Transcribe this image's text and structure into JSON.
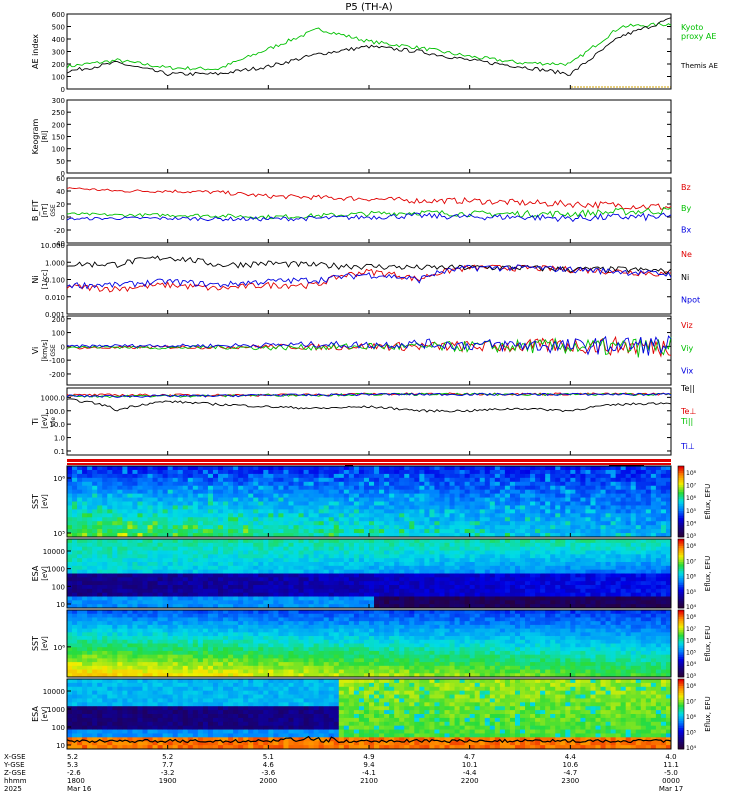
{
  "title": "P5 (TH-A)",
  "colors": {
    "black": "#000000",
    "red": "#e00000",
    "green": "#00c000",
    "blue": "#0000e0",
    "gold": "#d0a000"
  },
  "chart_data": [
    {
      "type": "line",
      "panel": "ae",
      "ylabel": "AE index",
      "yticks": [
        "0",
        "100",
        "200",
        "300",
        "400",
        "500",
        "600"
      ],
      "ylim": [
        0,
        600
      ],
      "legend": [
        {
          "text": "Kyoto",
          "color": "#00c000"
        },
        {
          "text": "proxy AE",
          "color": "#00c000"
        },
        {
          "text": "Themis AE",
          "color": "#000000"
        }
      ],
      "x": [
        "1800",
        "1830",
        "1900",
        "1930",
        "2000",
        "2030",
        "2100",
        "2130",
        "2200",
        "2230",
        "2300",
        "2330",
        "0000"
      ],
      "series": [
        {
          "name": "Kyoto proxy AE",
          "color": "#00c000",
          "values": [
            180,
            230,
            170,
            160,
            320,
            480,
            380,
            330,
            260,
            210,
            200,
            500,
            520
          ]
        },
        {
          "name": "Themis AE",
          "color": "#000000",
          "values": [
            140,
            210,
            120,
            120,
            180,
            280,
            340,
            300,
            230,
            180,
            120,
            420,
            560
          ]
        }
      ]
    },
    {
      "type": "heatmap",
      "panel": "keogram",
      "ylabel": "Keogram",
      "yunit": "[Rl]",
      "yticks": [
        "0",
        "50",
        "100",
        "150",
        "200",
        "250",
        "300"
      ]
    },
    {
      "type": "line",
      "panel": "bfield",
      "ylabel": "B_FIT",
      "yunit": "[nT]",
      "coord": "GSE",
      "yticks": [
        "-40",
        "-20",
        "0",
        "20",
        "40",
        "60"
      ],
      "ylim": [
        -40,
        60
      ],
      "series": [
        {
          "name": "Bz",
          "color": "#e00000",
          "values": [
            45,
            40,
            40,
            38,
            32,
            30,
            28,
            25,
            25,
            22,
            20,
            18,
            15
          ]
        },
        {
          "name": "By",
          "color": "#00c000",
          "values": [
            5,
            3,
            3,
            2,
            0,
            2,
            5,
            7,
            5,
            5,
            5,
            8,
            10
          ]
        },
        {
          "name": "Bx",
          "color": "#0000e0",
          "values": [
            -3,
            -2,
            -2,
            -3,
            -3,
            -2,
            0,
            2,
            0,
            0,
            -2,
            0,
            0
          ]
        }
      ]
    },
    {
      "type": "line",
      "panel": "density",
      "ylog": true,
      "ylabel": "Ni",
      "yunit": "[1/cc]",
      "yticks": [
        "0.001",
        "0.010",
        "0.100",
        "1.000",
        "10.000"
      ],
      "series": [
        {
          "name": "Ne",
          "color": "#e00000",
          "values": [
            0.04,
            0.03,
            0.05,
            0.03,
            0.05,
            0.05,
            0.3,
            0.1,
            0.5,
            0.5,
            0.4,
            0.3,
            0.2
          ]
        },
        {
          "name": "Ni",
          "color": "#000000",
          "values": [
            0.8,
            0.8,
            2,
            0.7,
            0.9,
            0.7,
            0.6,
            0.5,
            0.5,
            0.5,
            0.4,
            0.4,
            0.3
          ]
        },
        {
          "name": "Npot",
          "color": "#0000e0",
          "values": [
            0.05,
            0.05,
            0.08,
            0.05,
            0.08,
            0.1,
            0.2,
            0.1,
            0.5,
            0.5,
            0.4,
            0.3,
            0.2
          ]
        }
      ]
    },
    {
      "type": "line",
      "panel": "velocity",
      "ylabel": "Vi",
      "yunit": "[km/s]",
      "coord": "GSE",
      "yticks": [
        "-200",
        "-100",
        "0",
        "100",
        "200"
      ],
      "ylim": [
        -280,
        220
      ],
      "series": [
        {
          "name": "Viz",
          "color": "#e00000",
          "values": [
            -10,
            -10,
            -5,
            -5,
            0,
            -5,
            0,
            0,
            0,
            0,
            10,
            0,
            0
          ]
        },
        {
          "name": "Viy",
          "color": "#00c000",
          "values": [
            -5,
            -5,
            -10,
            -5,
            -10,
            -5,
            0,
            -5,
            0,
            0,
            0,
            -10,
            -5
          ]
        },
        {
          "name": "Vix",
          "color": "#0000e0",
          "values": [
            0,
            5,
            5,
            5,
            10,
            15,
            10,
            20,
            10,
            10,
            0,
            10,
            5
          ]
        }
      ]
    },
    {
      "type": "line",
      "panel": "temperature",
      "ylog": true,
      "ylabel": "Ti",
      "yunit": "[eV]",
      "coord": "ele",
      "yticks": [
        "0.1",
        "1.0",
        "10.0",
        "100.0",
        "1000.0"
      ],
      "series": [
        {
          "name": "Te||",
          "color": "#000000",
          "values": [
            700,
            100,
            500,
            300,
            200,
            150,
            200,
            100,
            100,
            150,
            100,
            300,
            400
          ]
        },
        {
          "name": "Te⊥",
          "color": "#e00000",
          "values": [
            1500,
            1500,
            1500,
            1500,
            1500,
            1600,
            1800,
            1800,
            1800,
            1800,
            1800,
            1800,
            1800
          ]
        },
        {
          "name": "Ti||",
          "color": "#00c000",
          "values": [
            1300,
            1200,
            1300,
            1300,
            1500,
            1500,
            1700,
            1700,
            1700,
            1700,
            1700,
            1700,
            1700
          ]
        },
        {
          "name": "Ti⊥",
          "color": "#0000e0",
          "values": [
            1300,
            1200,
            1300,
            1300,
            1500,
            1500,
            1700,
            1700,
            1700,
            1700,
            1700,
            1700,
            1700
          ]
        }
      ]
    },
    {
      "type": "heatmap",
      "panel": "sst-ele",
      "ylabel": "SST",
      "yunit": "[eV]",
      "species": "ele",
      "yticks": [
        "10⁶",
        "10⁵"
      ],
      "colorbar": {
        "label": "Eflux, EFU",
        "ticks": [
          "10⁸",
          "10⁷",
          "10⁶",
          "10⁵",
          "10⁴",
          "10³"
        ]
      }
    },
    {
      "type": "heatmap",
      "panel": "esa-ele",
      "ylabel": "ESA",
      "yunit": "[eV]",
      "species": "ele",
      "yticks": [
        "10000",
        "1000",
        "100",
        "10"
      ],
      "colorbar": {
        "label": "Eflux, EFU",
        "ticks": [
          "10⁸",
          "10⁷",
          "10⁶",
          "10⁵",
          "10⁴"
        ]
      }
    },
    {
      "type": "heatmap",
      "panel": "sst-ion",
      "ylabel": "SST",
      "yunit": "[eV]",
      "species": "ion",
      "yticks": [
        "10⁶"
      ],
      "colorbar": {
        "label": "Eflux, EFU",
        "ticks": [
          "10⁸",
          "10⁷",
          "10⁶",
          "10⁵",
          "10⁴",
          "10³"
        ]
      }
    },
    {
      "type": "heatmap",
      "panel": "esa-ion",
      "ylabel": "ESA",
      "yunit": "[eV]",
      "species": "ion",
      "yticks": [
        "10000",
        "1000",
        "100",
        "10"
      ],
      "colorbar": {
        "label": "Eflux, EFU",
        "ticks": [
          "10⁸",
          "10⁷",
          "10⁶",
          "10⁵",
          "10⁴"
        ]
      }
    }
  ],
  "footer": {
    "row_labels": [
      "X-GSE",
      "Y-GSE",
      "Z-GSE",
      "hhmm",
      "2025"
    ],
    "columns": [
      {
        "x": "5.2",
        "y": "5.3",
        "z": "-2.6",
        "t": "1800",
        "d": "Mar 16"
      },
      {
        "x": "5.2",
        "y": "7.7",
        "z": "-3.2",
        "t": "1900",
        "d": ""
      },
      {
        "x": "5.1",
        "y": "4.6",
        "z": "-3.6",
        "t": "2000",
        "d": ""
      },
      {
        "x": "4.9",
        "y": "9.4",
        "z": "-4.1",
        "t": "2100",
        "d": ""
      },
      {
        "x": "4.7",
        "y": "10.1",
        "z": "-4.4",
        "t": "2200",
        "d": ""
      },
      {
        "x": "4.4",
        "y": "10.6",
        "z": "-4.7",
        "t": "2300",
        "d": ""
      },
      {
        "x": "4.0",
        "y": "11.1",
        "z": "-5.0",
        "t": "0000",
        "d": "Mar 17"
      }
    ]
  }
}
